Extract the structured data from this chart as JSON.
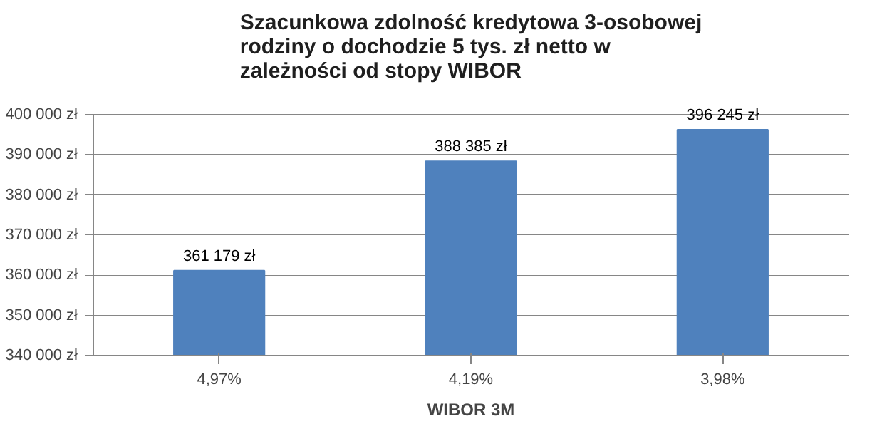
{
  "chart_data": {
    "type": "bar",
    "title": "Szacunkowa zdolność kredytowa 3-osobowej rodziny o dochodzie 5 tys. zł netto w zależności od stopy WIBOR",
    "xlabel": "WIBOR 3M",
    "categories": [
      "4,97%",
      "4,19%",
      "3,98%"
    ],
    "values": [
      361179,
      388385,
      396245
    ],
    "value_labels": [
      "361 179 zł",
      "388 385 zł",
      "396 245 zł"
    ],
    "color": "#4f81bd",
    "ylim": [
      340000,
      400000
    ],
    "yticks": [
      {
        "value": 340000,
        "label": "340 000 zł"
      },
      {
        "value": 350000,
        "label": "350 000 zł"
      },
      {
        "value": 360000,
        "label": "360 000 zł"
      },
      {
        "value": 370000,
        "label": "370 000 zł"
      },
      {
        "value": 380000,
        "label": "380 000 zł"
      },
      {
        "value": 390000,
        "label": "390 000 zł"
      },
      {
        "value": 400000,
        "label": "400 000 zł"
      }
    ],
    "grid": "y"
  }
}
